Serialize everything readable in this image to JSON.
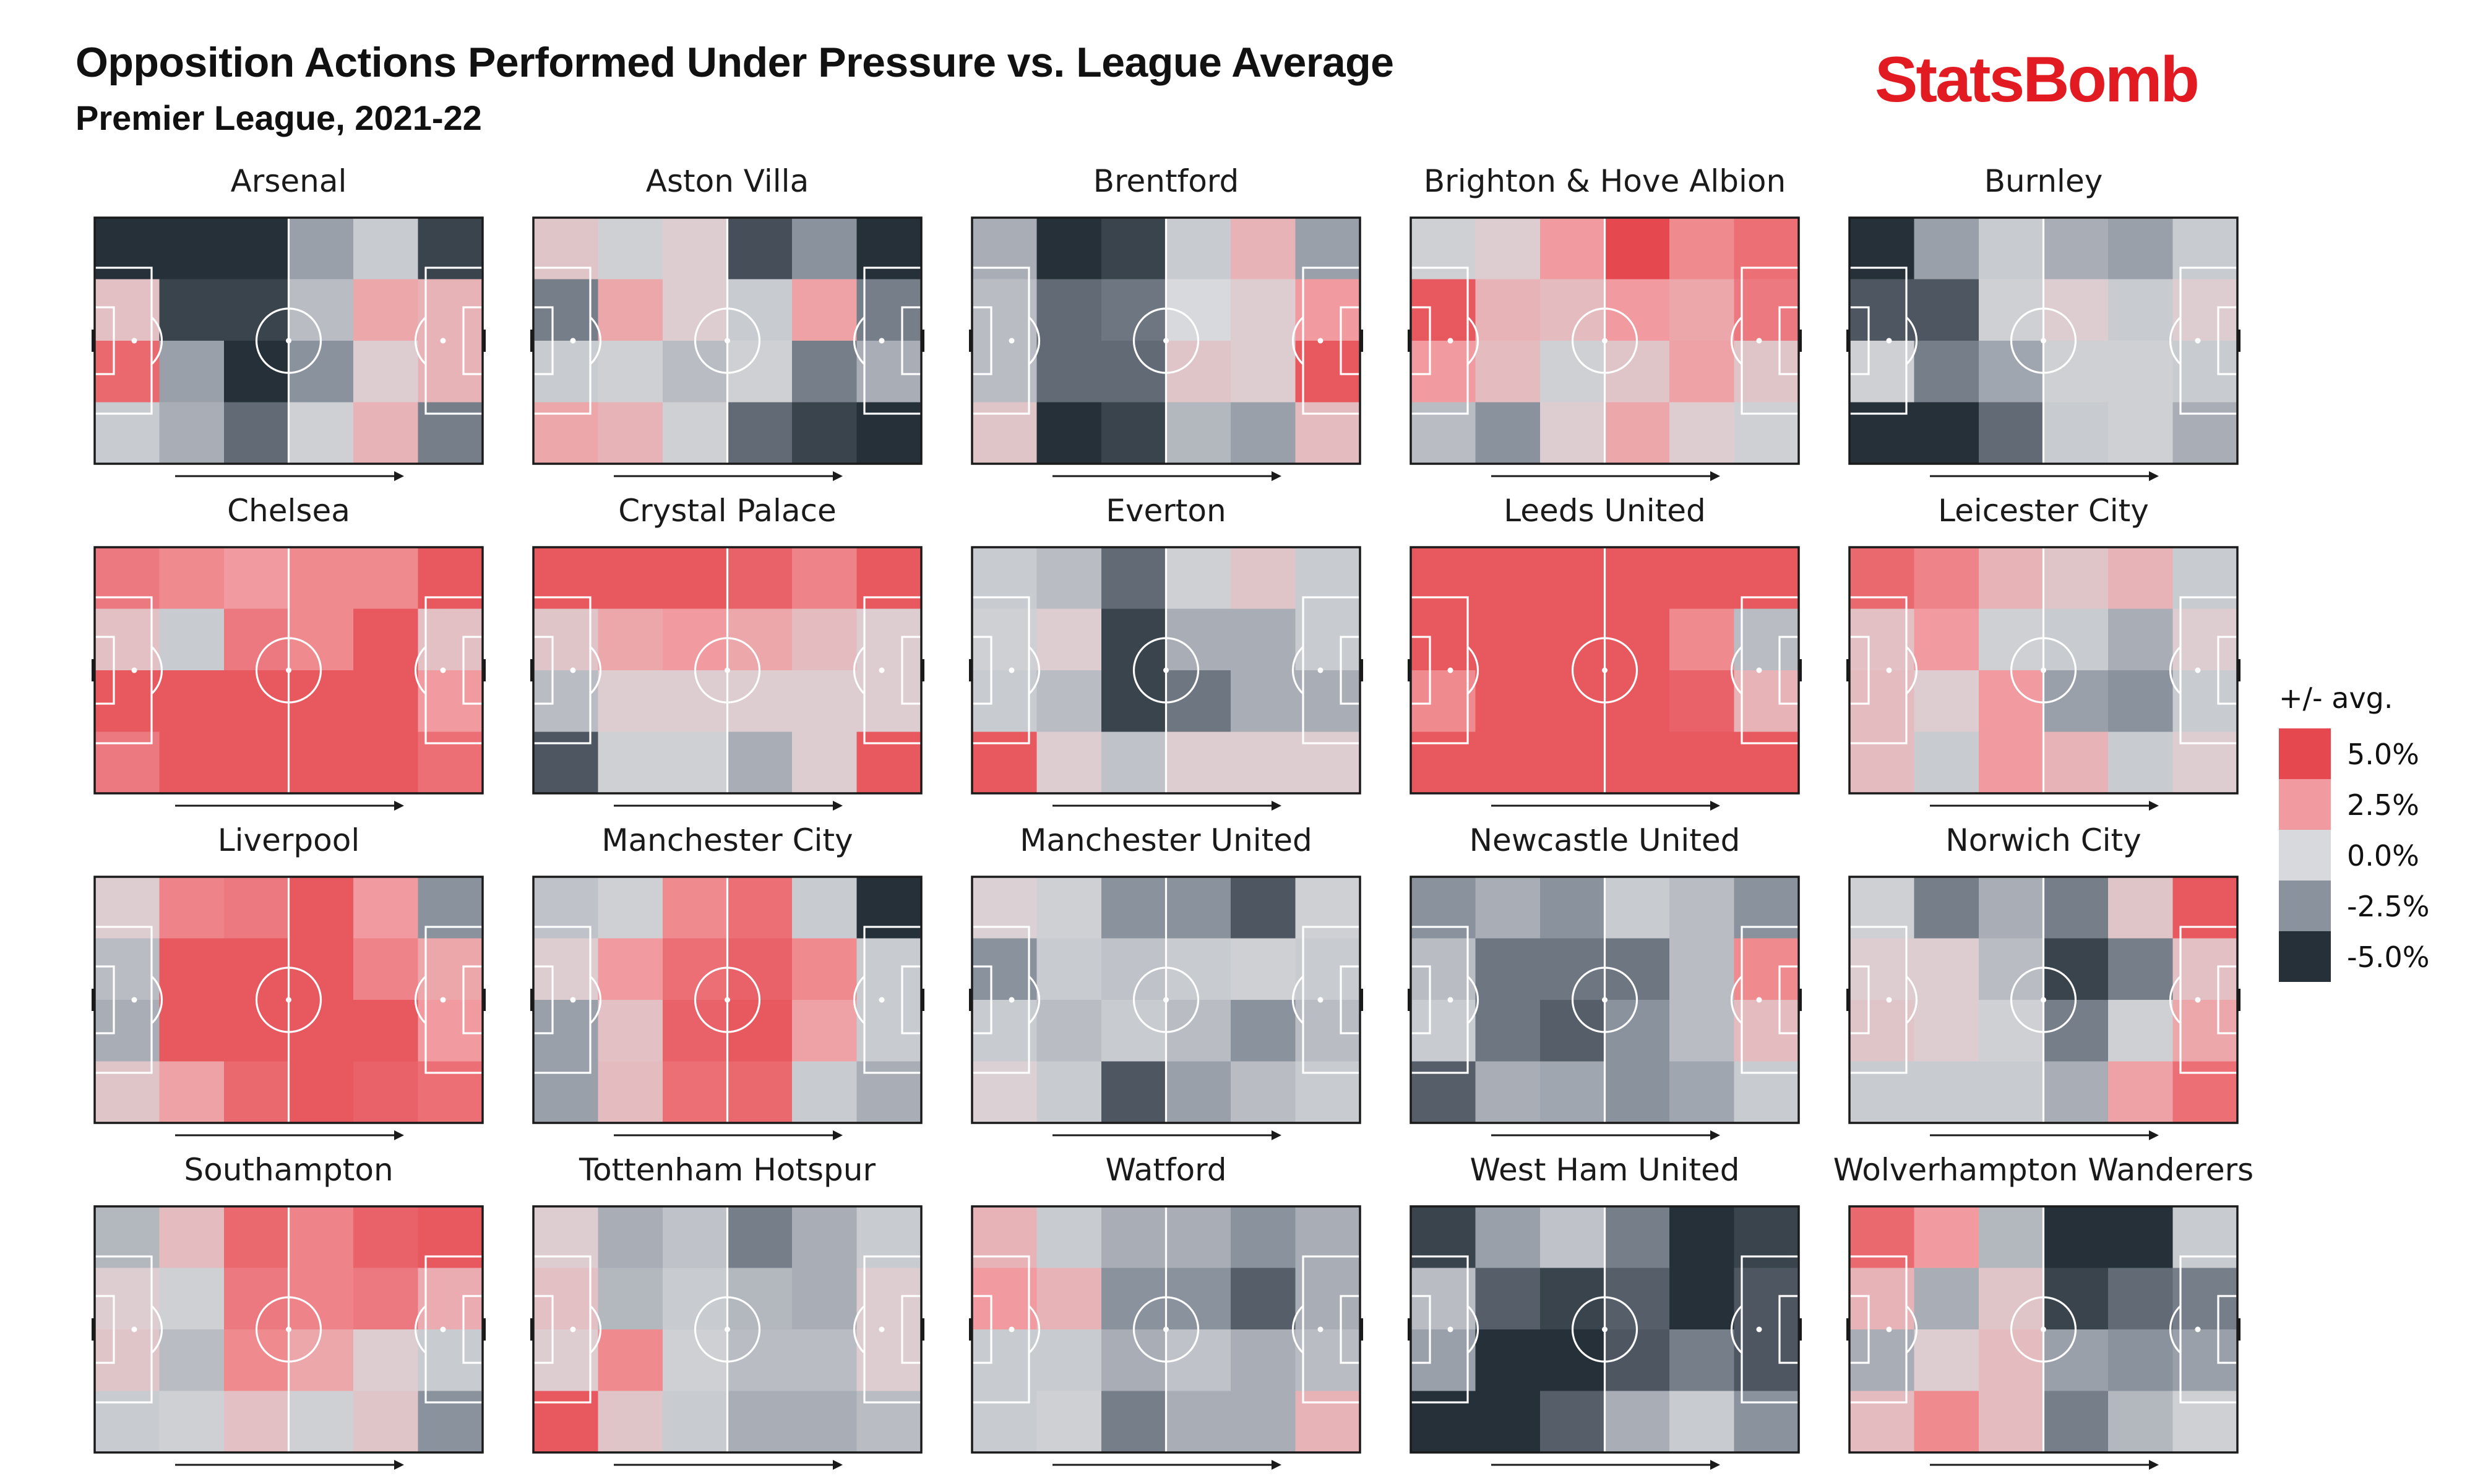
{
  "header": {
    "title": "Opposition Actions Performed Under Pressure vs. League Average",
    "subtitle": "Premier League, 2021-22",
    "logo": "StatsBomb"
  },
  "colors": {
    "brand": "#e21b23",
    "scale": {
      "5.0": "#e5484f",
      "2.5": "#f19a9f",
      "0.0": "#d8d9dc",
      "-2.5": "#8a929d",
      "-5.0": "#263039"
    }
  },
  "chart_data": {
    "type": "heatmap",
    "description_units": "percentage points vs league average, 6 pitch zones (x, own goal → opponent goal) × 4 zones (y, top → bottom)",
    "value_range": [
      -5,
      5
    ],
    "legend": {
      "title": "+/- avg.",
      "entries": [
        "5.0%",
        "2.5%",
        "0.0%",
        "-2.5%",
        "-5.0%"
      ],
      "values": [
        5,
        2.5,
        0,
        -2.5,
        -5
      ]
    },
    "teams": [
      {
        "name": "Arsenal",
        "grid": [
          [
            -5,
            -5,
            -5,
            -2,
            -0.5,
            -4.5
          ],
          [
            1,
            -4.5,
            -4.5,
            -1,
            2,
            1.5
          ],
          [
            4,
            -2,
            -5,
            -2.5,
            0.5,
            1.5
          ],
          [
            -0.5,
            -1.5,
            -3.5,
            -0.3,
            1.5,
            -3
          ]
        ]
      },
      {
        "name": "Aston Villa",
        "grid": [
          [
            0.8,
            -0.3,
            0.5,
            -4.2,
            -2.5,
            -5
          ],
          [
            -3,
            2,
            0.5,
            -0.5,
            2.2,
            -3
          ],
          [
            -0.5,
            -0.3,
            -1,
            -0.3,
            -3,
            -1.5
          ],
          [
            2,
            1.5,
            -0.3,
            -3.5,
            -4.5,
            -5
          ]
        ]
      },
      {
        "name": "Brentford",
        "grid": [
          [
            -1.5,
            -5,
            -4.5,
            -0.5,
            1.5,
            -2
          ],
          [
            -1,
            -3.5,
            -3.2,
            0,
            0.5,
            2.5
          ],
          [
            -1,
            -3.5,
            -3.5,
            0.8,
            0.5,
            4.5
          ],
          [
            0.8,
            -5,
            -4.5,
            -1.2,
            -2,
            1.2
          ]
        ]
      },
      {
        "name": "Brighton & Hove Albion",
        "grid": [
          [
            -0.3,
            0.5,
            2.5,
            5,
            3,
            3.8
          ],
          [
            4.5,
            1.5,
            1.2,
            2.5,
            2,
            3.5
          ],
          [
            2.5,
            1.2,
            -0.3,
            0.8,
            2.2,
            0.8
          ],
          [
            -1,
            -2.5,
            0.5,
            2,
            0.5,
            -0.3
          ]
        ]
      },
      {
        "name": "Burnley",
        "grid": [
          [
            -5,
            -2,
            -0.5,
            -1.5,
            -2,
            -0.5
          ],
          [
            -4,
            -4,
            -0.3,
            0.5,
            -0.5,
            0.5
          ],
          [
            -0.3,
            -3,
            -1.8,
            -0.3,
            -0.3,
            -0.5
          ],
          [
            -5,
            -5,
            -3.5,
            -0.5,
            -0.3,
            -1.5
          ]
        ]
      },
      {
        "name": "Chelsea",
        "grid": [
          [
            3.5,
            3,
            2.5,
            3,
            3,
            4.5
          ],
          [
            1,
            -0.5,
            3.5,
            3,
            4.5,
            1
          ],
          [
            4.5,
            4.5,
            4.5,
            4.5,
            4.5,
            2.5
          ],
          [
            3.5,
            4.5,
            4.5,
            4.5,
            4.5,
            3.8
          ]
        ]
      },
      {
        "name": "Crystal Palace",
        "grid": [
          [
            4.5,
            4.5,
            4.5,
            4.2,
            3.2,
            4.5
          ],
          [
            0.8,
            2,
            2.5,
            2,
            1.2,
            0.5
          ],
          [
            -1,
            0.5,
            0.5,
            0.5,
            0.5,
            0.5
          ],
          [
            -4,
            -0.3,
            -0.3,
            -1.5,
            0.5,
            4.5
          ]
        ]
      },
      {
        "name": "Everton",
        "grid": [
          [
            -0.5,
            -1,
            -3.5,
            -0.3,
            0.8,
            -0.5
          ],
          [
            -0.3,
            0.5,
            -4.5,
            -1.5,
            -1.5,
            -0.5
          ],
          [
            -0.5,
            -1,
            -4.5,
            -3.2,
            -1.5,
            -1.5
          ],
          [
            4.5,
            0.5,
            -0.8,
            0.5,
            0.5,
            0.5
          ]
        ]
      },
      {
        "name": "Leeds United",
        "grid": [
          [
            4.5,
            4.5,
            4.5,
            4.5,
            4.5,
            4.5
          ],
          [
            4.5,
            4.5,
            4.5,
            4.5,
            3,
            -1
          ],
          [
            3,
            4.5,
            4.5,
            4.5,
            4.2,
            1.5
          ],
          [
            4.5,
            4.5,
            4.5,
            4.5,
            4.5,
            4.5
          ]
        ]
      },
      {
        "name": "Leicester City",
        "grid": [
          [
            4,
            3.2,
            1.5,
            0.8,
            1.5,
            -0.5
          ],
          [
            1,
            2.5,
            -0.3,
            -0.5,
            -1.5,
            0.5
          ],
          [
            1.2,
            0.5,
            2.5,
            -2,
            -2.5,
            -0.5
          ],
          [
            1.2,
            -0.5,
            2.5,
            1.5,
            -0.5,
            0.5
          ]
        ]
      },
      {
        "name": "Liverpool",
        "grid": [
          [
            0.5,
            3.2,
            3.5,
            4.5,
            2.5,
            -2.5
          ],
          [
            -1,
            4.5,
            4.5,
            4.5,
            3.2,
            2
          ],
          [
            -1.5,
            4.5,
            4.5,
            4.5,
            4.5,
            2.5
          ],
          [
            0.8,
            2.2,
            4,
            4.5,
            4.2,
            3.8
          ]
        ]
      },
      {
        "name": "Manchester City",
        "grid": [
          [
            -0.8,
            -0.3,
            3,
            3.8,
            -0.5,
            -5
          ],
          [
            0.5,
            2.5,
            3.8,
            4.2,
            3,
            -0.5
          ],
          [
            -2,
            1,
            4.2,
            4.5,
            2.2,
            -0.5
          ],
          [
            -2,
            1.2,
            3.8,
            4,
            -0.5,
            -1.5
          ]
        ]
      },
      {
        "name": "Manchester United",
        "grid": [
          [
            0.3,
            -0.3,
            -2.5,
            -2.5,
            -4,
            -0.3
          ],
          [
            -2.5,
            -0.5,
            -0.8,
            -0.5,
            -0.3,
            -0.5
          ],
          [
            -0.5,
            -1,
            -0.5,
            -1,
            -2.5,
            -1
          ],
          [
            0.3,
            -0.5,
            -4,
            -2,
            -1,
            -0.5
          ]
        ]
      },
      {
        "name": "Newcastle United",
        "grid": [
          [
            -2.5,
            -1.5,
            -2.5,
            -0.5,
            -1,
            -2.5
          ],
          [
            -1,
            -3.2,
            -3.2,
            -3.2,
            -1,
            3
          ],
          [
            -0.5,
            -3.2,
            -3.8,
            -2.5,
            -1,
            1.2
          ],
          [
            -3.8,
            -1.5,
            -1.8,
            -2.5,
            -1.8,
            -0.5
          ]
        ]
      },
      {
        "name": "Norwich City",
        "grid": [
          [
            -0.3,
            -3,
            -1.5,
            -3,
            0.8,
            4.5
          ],
          [
            0.5,
            0.5,
            -1,
            -4.5,
            -3,
            1
          ],
          [
            0.8,
            0.5,
            -0.3,
            -3,
            -0.3,
            2
          ],
          [
            -0.5,
            -0.5,
            -0.5,
            -1.5,
            2.2,
            3.8
          ]
        ]
      },
      {
        "name": "Southampton",
        "grid": [
          [
            -1.2,
            1.2,
            4,
            3.2,
            4.2,
            4.5
          ],
          [
            0.5,
            -0.3,
            3.5,
            3.2,
            3.5,
            1.8
          ],
          [
            0.8,
            -1,
            3,
            2,
            0.5,
            -0.5
          ],
          [
            -0.5,
            -0.3,
            1,
            -0.3,
            0.8,
            -2.5
          ]
        ]
      },
      {
        "name": "Tottenham Hotspur",
        "grid": [
          [
            0.5,
            -1.5,
            -0.8,
            -3,
            -1.5,
            -0.5
          ],
          [
            1,
            -1.2,
            -0.5,
            -1.2,
            -1.5,
            0.5
          ],
          [
            0.5,
            3,
            -0.3,
            -1,
            -1,
            0.5
          ],
          [
            4.5,
            0.8,
            -0.5,
            -1.5,
            -1.5,
            -1
          ]
        ]
      },
      {
        "name": "Watford",
        "grid": [
          [
            1.5,
            -0.5,
            -1.5,
            -1.5,
            -2.5,
            -1.5
          ],
          [
            2.5,
            1.5,
            -2.5,
            -2.5,
            -3.8,
            -1.5
          ],
          [
            -0.5,
            -0.5,
            -1.5,
            -0.8,
            -1.5,
            -1
          ],
          [
            -0.5,
            -0.3,
            -3,
            -1.5,
            -1.5,
            1.5
          ]
        ]
      },
      {
        "name": "West Ham United",
        "grid": [
          [
            -4.5,
            -2,
            -0.8,
            -3,
            -5,
            -4.5
          ],
          [
            -1,
            -3.8,
            -4.5,
            -3.8,
            -5,
            -4
          ],
          [
            -2,
            -5,
            -5,
            -4,
            -3,
            -4
          ],
          [
            -5,
            -5,
            -3.8,
            -1.5,
            -0.5,
            -2.5
          ]
        ]
      },
      {
        "name": "Wolverhampton Wanderers",
        "grid": [
          [
            4,
            2.5,
            -1.2,
            -5,
            -5,
            -0.5
          ],
          [
            1.5,
            -1.5,
            0.8,
            -4.5,
            -3.5,
            -3
          ],
          [
            -1.5,
            0.5,
            1.2,
            -2,
            -2.5,
            -2
          ],
          [
            1.2,
            3,
            1.2,
            -3,
            -1.2,
            -0.3
          ]
        ]
      }
    ]
  }
}
